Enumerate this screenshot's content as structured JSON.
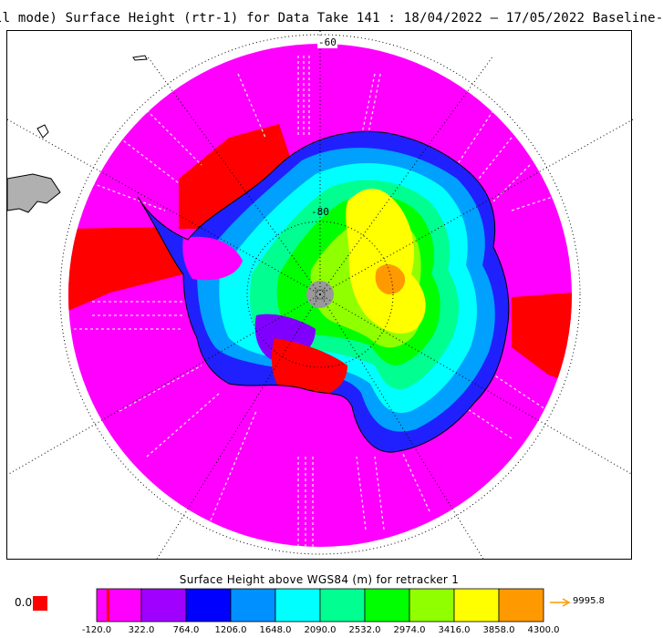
{
  "title": "ll mode) Surface Height (rtr-1) for Data Take 141 : 18/04/2022 – 17/05/2022 Baseline-",
  "map": {
    "lat_labels": [
      "-60",
      "-80"
    ],
    "colors": {
      "ocean_magenta": "#ff00ff",
      "red": "#ff0000",
      "land_gray": "#b0b0b0",
      "pole_gray": "#999999"
    }
  },
  "legend": {
    "title": "Surface Height above WGS84 (m) for retracker 1",
    "zero_label": "0.0",
    "max_label": "9995.8",
    "ticks": [
      "-120.0",
      "322.0",
      "764.0",
      "1206.0",
      "1648.0",
      "2090.0",
      "2532.0",
      "2974.0",
      "3416.0",
      "3858.0",
      "4300.0"
    ],
    "colors": [
      "#ff00ff",
      "#a000ff",
      "#0000ff",
      "#0090ff",
      "#00ffff",
      "#00ff90",
      "#00ff00",
      "#90ff00",
      "#ffff00",
      "#ff9900"
    ],
    "arrow_color": "#ff9900",
    "zero_color": "#ff0000"
  }
}
